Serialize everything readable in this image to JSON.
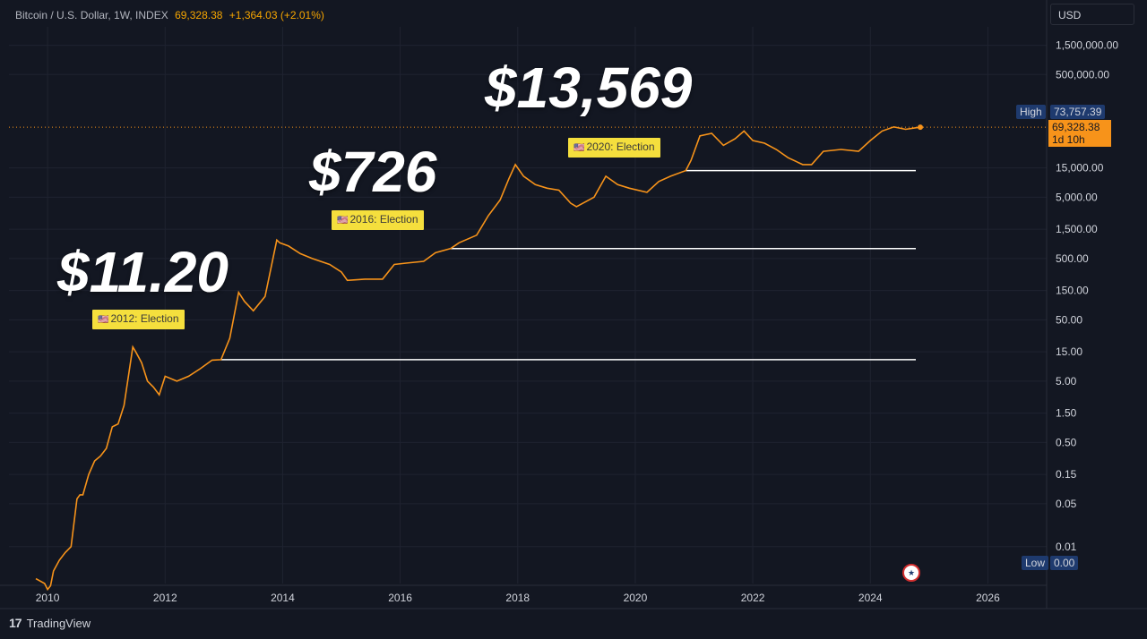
{
  "header": {
    "symbol": "Bitcoin / U.S. Dollar, 1W, INDEX",
    "price": "69,328.38",
    "change": "+1,364.03 (+2.01%)"
  },
  "currency_button": "USD",
  "price_tags": {
    "high_label": "High",
    "high_value": "73,757.39",
    "last_price": "69,328.38",
    "countdown": "1d 10h",
    "low_label": "Low",
    "low_value": "0.00"
  },
  "annotations": {
    "big_2012": "$11.20",
    "big_2016": "$726",
    "big_2020": "$13,569",
    "election_2012": "2012: Election",
    "election_2016": "2016: Election",
    "election_2020": "2020: Election",
    "flag": "🇺🇸"
  },
  "footer": {
    "brand": "TradingView"
  },
  "colors": {
    "background": "#131722",
    "series": "#f7931a",
    "grid": "#1f2330",
    "axis_text": "#d1d4dc",
    "label_bg": "#f5df3d",
    "tag_bg": "#1e3a6e"
  },
  "chart_data": {
    "type": "line",
    "scale": "log",
    "title": "Bitcoin / U.S. Dollar, 1W, INDEX",
    "x_ticks": [
      "2010",
      "2012",
      "2014",
      "2016",
      "2018",
      "2020",
      "2022",
      "2024",
      "2026"
    ],
    "y_ticks": [
      "0.01",
      "0.05",
      "0.15",
      "0.50",
      "1.50",
      "5.00",
      "15.00",
      "50.00",
      "150.00",
      "500.00",
      "1,500.00",
      "5,000.00",
      "15,000.00",
      "500,000.00",
      "1,500,000.00"
    ],
    "ylim": [
      0.0025,
      3000000
    ],
    "series": [
      {
        "values_note": "x = year, y = price USD",
        "x": [
          2009.8,
          2009.95,
          2010.0,
          2010.05,
          2010.1,
          2010.2,
          2010.3,
          2010.4,
          2010.5,
          2010.55,
          2010.6,
          2010.7,
          2010.8,
          2010.9,
          2011.0,
          2011.1,
          2011.2,
          2011.3,
          2011.45,
          2011.5,
          2011.6,
          2011.7,
          2011.8,
          2011.9,
          2012.0,
          2012.2,
          2012.4,
          2012.6,
          2012.8,
          2012.95,
          2013.1,
          2013.25,
          2013.35,
          2013.5,
          2013.7,
          2013.9,
          2013.95,
          2014.1,
          2014.3,
          2014.5,
          2014.8,
          2015.0,
          2015.1,
          2015.4,
          2015.7,
          2015.9,
          2016.1,
          2016.4,
          2016.6,
          2016.86,
          2017.0,
          2017.3,
          2017.5,
          2017.7,
          2017.85,
          2017.96,
          2018.1,
          2018.3,
          2018.5,
          2018.7,
          2018.9,
          2019.0,
          2019.3,
          2019.5,
          2019.7,
          2019.9,
          2020.2,
          2020.4,
          2020.6,
          2020.86,
          2020.95,
          2021.1,
          2021.3,
          2021.5,
          2021.7,
          2021.85,
          2022.0,
          2022.2,
          2022.4,
          2022.6,
          2022.85,
          2023.0,
          2023.2,
          2023.5,
          2023.8,
          2024.0,
          2024.2,
          2024.4,
          2024.6,
          2024.85
        ],
        "y": [
          0.003,
          0.0025,
          0.002,
          0.0023,
          0.004,
          0.006,
          0.008,
          0.01,
          0.06,
          0.07,
          0.07,
          0.15,
          0.25,
          0.3,
          0.4,
          0.9,
          1.0,
          2.0,
          18,
          15,
          10,
          5,
          4,
          3,
          6,
          5,
          6,
          8,
          11,
          11.2,
          25,
          140,
          100,
          70,
          120,
          1000,
          900,
          800,
          600,
          500,
          400,
          300,
          220,
          230,
          230,
          400,
          420,
          450,
          620,
          726,
          900,
          1200,
          2500,
          4500,
          10000,
          17000,
          11000,
          8000,
          7000,
          6500,
          4000,
          3500,
          5000,
          11000,
          8000,
          7000,
          6000,
          9000,
          11000,
          13569,
          20000,
          50000,
          55000,
          35000,
          45000,
          60000,
          42000,
          38000,
          30000,
          22000,
          17000,
          17000,
          28000,
          30000,
          28000,
          42000,
          60000,
          70000,
          64000,
          69328
        ]
      }
    ],
    "reference_levels": [
      11.2,
      726,
      13569
    ],
    "grid": true,
    "y_axis_position": "right"
  }
}
